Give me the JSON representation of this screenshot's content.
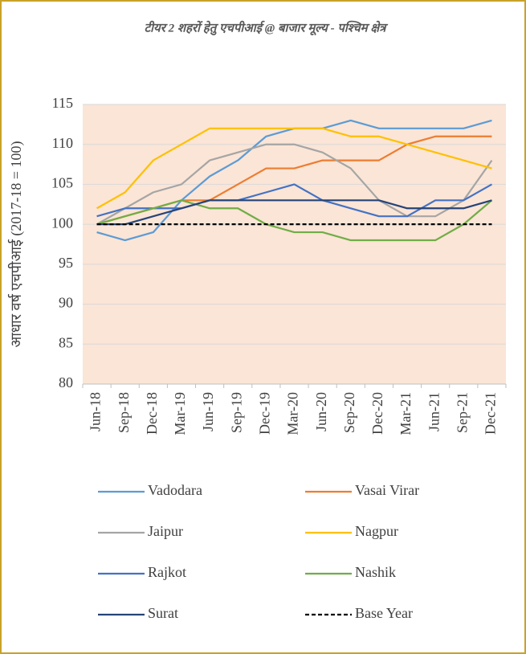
{
  "chart_data": {
    "type": "line",
    "title": "टीयर 2 शहरों हेतु एचपीआई @ बाजार मूल्य - पश्चिम क्षेत्र",
    "y_label": "आधार वर्ष एचपीआई (2017-18 = 100)",
    "categories": [
      "Jun-18",
      "Sep-18",
      "Dec-18",
      "Mar-19",
      "Jun-19",
      "Sep-19",
      "Dec-19",
      "Mar-20",
      "Jun-20",
      "Sep-20",
      "Dec-20",
      "Mar-21",
      "Jun-21",
      "Sep-21",
      "Dec-21"
    ],
    "ylim": [
      80,
      115
    ],
    "yticks": [
      80,
      85,
      90,
      95,
      100,
      105,
      110,
      115
    ],
    "grid": true,
    "series": [
      {
        "name": "Vadodara",
        "color": "#5b9bd5",
        "values": [
          99,
          98,
          99,
          103,
          106,
          108,
          111,
          112,
          112,
          113,
          112,
          112,
          112,
          112,
          113
        ]
      },
      {
        "name": "Vasai Virar",
        "color": "#ed7d31",
        "values": [
          100,
          101,
          102,
          103,
          103,
          105,
          107,
          107,
          108,
          108,
          108,
          110,
          111,
          111,
          111
        ]
      },
      {
        "name": "Jaipur",
        "color": "#a5a5a5",
        "values": [
          100,
          102,
          104,
          105,
          108,
          109,
          110,
          110,
          109,
          107,
          103,
          101,
          101,
          103,
          108
        ]
      },
      {
        "name": "Nagpur",
        "color": "#ffc000",
        "values": [
          102,
          104,
          108,
          110,
          112,
          112,
          112,
          112,
          112,
          111,
          111,
          110,
          109,
          108,
          107
        ]
      },
      {
        "name": "Rajkot",
        "color": "#4472c4",
        "values": [
          101,
          102,
          102,
          102,
          103,
          103,
          104,
          105,
          103,
          102,
          101,
          101,
          103,
          103,
          105
        ]
      },
      {
        "name": "Nashik",
        "color": "#70ad47",
        "values": [
          100,
          101,
          102,
          103,
          102,
          102,
          100,
          99,
          99,
          98,
          98,
          98,
          98,
          100,
          103
        ]
      },
      {
        "name": "Surat",
        "color": "#264478",
        "values": [
          100,
          100,
          101,
          102,
          103,
          103,
          103,
          103,
          103,
          103,
          103,
          102,
          102,
          102,
          103
        ]
      },
      {
        "name": "Base Year",
        "color": "#000000",
        "dashed": true,
        "values": [
          100,
          100,
          100,
          100,
          100,
          100,
          100,
          100,
          100,
          100,
          100,
          100,
          100,
          100,
          100
        ]
      }
    ]
  }
}
